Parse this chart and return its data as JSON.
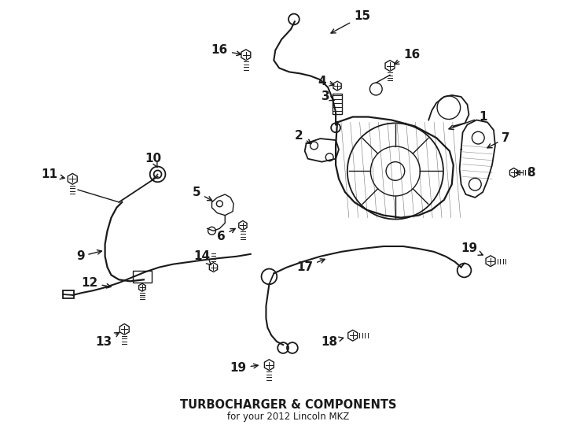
{
  "title": "TURBOCHARGER & COMPONENTS",
  "subtitle": "for your 2012 Lincoln MKZ",
  "bg_color": "#ffffff",
  "line_color": "#1a1a1a",
  "fig_width": 7.34,
  "fig_height": 5.4,
  "dpi": 100,
  "label_fontsize": 11,
  "title_fontsize": 10.5,
  "subtitle_fontsize": 8.5
}
